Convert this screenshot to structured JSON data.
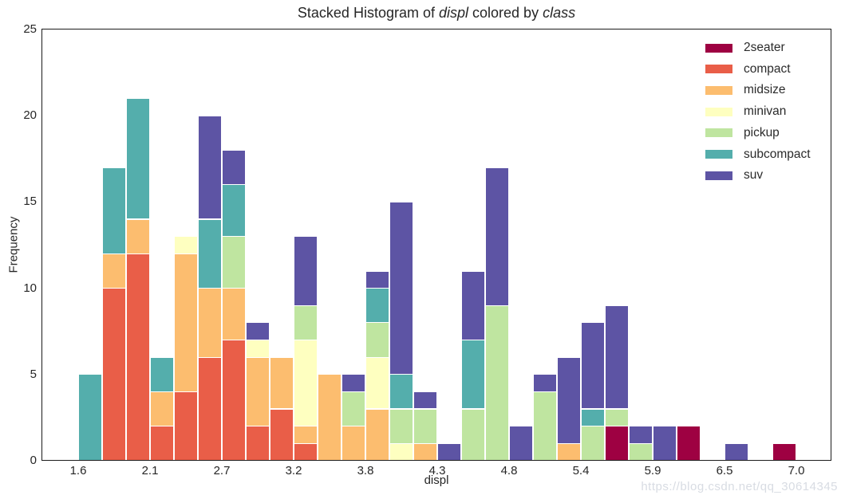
{
  "title": {
    "prefix": "Stacked Histogram of ",
    "var1": "displ",
    "middle": " colored by ",
    "var2": "class"
  },
  "watermark": "https://blog.csdn.net/qq_30614345",
  "colors": {
    "background": "#ffffff",
    "spine": "#1c1c1c",
    "text": "#262626",
    "watermark": "#d8dce3",
    "segment_edge": "#ffffff"
  },
  "chart_data": {
    "type": "bar",
    "subtype": "stacked-histogram",
    "title": "Stacked Histogram of displ colored by class",
    "xlabel": "displ",
    "ylabel": "Frequency",
    "xlim": [
      1.6,
      7.0
    ],
    "ylim": [
      0,
      25
    ],
    "grid": false,
    "legend_position": "upper-right",
    "bins": {
      "start": 1.6,
      "end": 7.0,
      "count": 30,
      "width": 0.18
    },
    "x_ticks": [
      {
        "value": 1.6,
        "label": "1.6"
      },
      {
        "value": 2.14,
        "label": "2.1"
      },
      {
        "value": 2.68,
        "label": "2.7"
      },
      {
        "value": 3.22,
        "label": "3.2"
      },
      {
        "value": 3.76,
        "label": "3.8"
      },
      {
        "value": 4.3,
        "label": "4.3"
      },
      {
        "value": 4.84,
        "label": "4.8"
      },
      {
        "value": 5.38,
        "label": "5.4"
      },
      {
        "value": 5.92,
        "label": "5.9"
      },
      {
        "value": 6.46,
        "label": "6.5"
      },
      {
        "value": 7.0,
        "label": "7.0"
      }
    ],
    "y_ticks": [
      {
        "value": 0,
        "label": "0"
      },
      {
        "value": 5,
        "label": "5"
      },
      {
        "value": 10,
        "label": "10"
      },
      {
        "value": 15,
        "label": "15"
      },
      {
        "value": 20,
        "label": "20"
      },
      {
        "value": 25,
        "label": "25"
      }
    ],
    "series": [
      {
        "name": "2seater",
        "color": "#9E0142",
        "values": [
          0,
          0,
          0,
          0,
          0,
          0,
          0,
          0,
          0,
          0,
          0,
          0,
          0,
          0,
          0,
          0,
          0,
          0,
          0,
          0,
          0,
          0,
          2,
          0,
          0,
          2,
          0,
          0,
          0,
          1
        ]
      },
      {
        "name": "compact",
        "color": "#E95E48",
        "values": [
          0,
          10,
          12,
          2,
          4,
          6,
          7,
          2,
          3,
          1,
          0,
          0,
          0,
          0,
          0,
          0,
          0,
          0,
          0,
          0,
          0,
          0,
          0,
          0,
          0,
          0,
          0,
          0,
          0,
          0
        ]
      },
      {
        "name": "midsize",
        "color": "#FCBD6F",
        "values": [
          0,
          2,
          2,
          2,
          8,
          4,
          3,
          4,
          3,
          1,
          5,
          2,
          3,
          0,
          1,
          0,
          0,
          0,
          0,
          0,
          1,
          0,
          0,
          0,
          0,
          0,
          0,
          0,
          0,
          0
        ]
      },
      {
        "name": "minivan",
        "color": "#FEFFC0",
        "values": [
          0,
          0,
          0,
          0,
          1,
          0,
          0,
          1,
          0,
          5,
          0,
          0,
          3,
          1,
          0,
          0,
          0,
          0,
          0,
          0,
          0,
          0,
          0,
          0,
          0,
          0,
          0,
          0,
          0,
          0
        ]
      },
      {
        "name": "pickup",
        "color": "#BFE5A0",
        "values": [
          0,
          0,
          0,
          0,
          0,
          0,
          3,
          0,
          0,
          2,
          0,
          2,
          2,
          2,
          2,
          0,
          3,
          9,
          0,
          4,
          0,
          2,
          1,
          1,
          0,
          0,
          0,
          0,
          0,
          0
        ]
      },
      {
        "name": "subcompact",
        "color": "#54AEAC",
        "values": [
          5,
          5,
          7,
          2,
          0,
          4,
          3,
          0,
          0,
          0,
          0,
          0,
          2,
          2,
          0,
          0,
          4,
          0,
          0,
          0,
          0,
          1,
          0,
          0,
          0,
          0,
          0,
          0,
          0,
          0
        ]
      },
      {
        "name": "suv",
        "color": "#5D54A4",
        "values": [
          0,
          0,
          0,
          0,
          0,
          6,
          2,
          1,
          0,
          4,
          0,
          1,
          1,
          10,
          1,
          1,
          4,
          8,
          2,
          1,
          5,
          5,
          6,
          1,
          2,
          0,
          0,
          1,
          0,
          0
        ]
      }
    ],
    "bin_totals": [
      5,
      17,
      21,
      6,
      13,
      20,
      18,
      8,
      6,
      13,
      5,
      5,
      11,
      15,
      4,
      1,
      11,
      17,
      2,
      5,
      6,
      8,
      9,
      2,
      2,
      2,
      0,
      1,
      0,
      1
    ],
    "total_observations": 234
  }
}
